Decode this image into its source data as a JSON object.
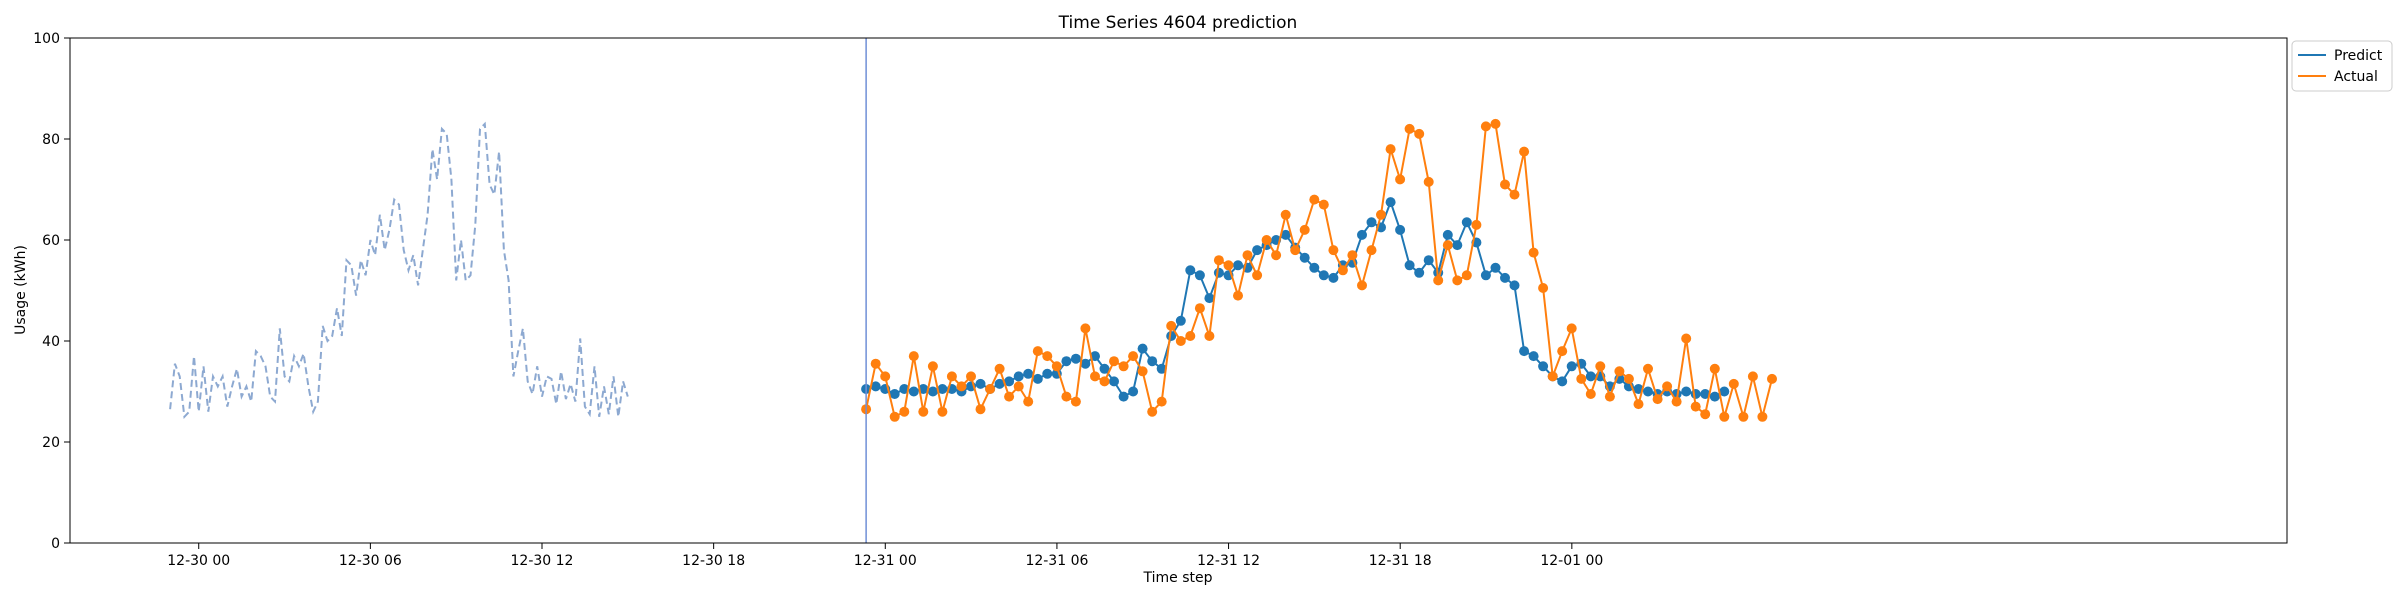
{
  "chart_data": {
    "type": "line",
    "title": "Time Series 4604 prediction",
    "xlabel": "Time step",
    "ylabel": "Usage (kWh)",
    "ylim": [
      0,
      100
    ],
    "yticks": [
      0,
      20,
      40,
      60,
      80,
      100
    ],
    "x_unit": "hours since 12-30 00 (hourly steps)",
    "xlim": [
      -4.5,
      73
    ],
    "xticks": [
      {
        "x": 0,
        "label": "12-30 00"
      },
      {
        "x": 6,
        "label": "12-30 06"
      },
      {
        "x": 12,
        "label": "12-30 12"
      },
      {
        "x": 18,
        "label": "12-30 18"
      },
      {
        "x": 24,
        "label": "12-31 00"
      },
      {
        "x": 30,
        "label": "12-31 06"
      },
      {
        "x": 36,
        "label": "12-31 12"
      },
      {
        "x": 42,
        "label": "12-31 18"
      },
      {
        "x": 48,
        "label": "12-01 00"
      }
    ],
    "split_x": 23.33,
    "grid": false,
    "legend_position": "outside-top-right",
    "colors": {
      "history": "#8da9d1",
      "predict": "#1f77b4",
      "actual": "#ff7f0e",
      "split_line": "#6f8fd6"
    },
    "series": [
      {
        "name": "",
        "role": "history",
        "style": "dashed",
        "x_start": -1.0,
        "x_step": 0.16667,
        "values": [
          26.5,
          35.5,
          33,
          25,
          26,
          37,
          26,
          35,
          26,
          33,
          31,
          33,
          27,
          31,
          34.5,
          29,
          31,
          28,
          38,
          37,
          35,
          29,
          28,
          42.5,
          33,
          32,
          37,
          35,
          37.5,
          31,
          26,
          28,
          43,
          40,
          41,
          46.5,
          41,
          56,
          55,
          49,
          56,
          53,
          60,
          57,
          65,
          58,
          62,
          68,
          67,
          58,
          54,
          57,
          51,
          58,
          65,
          78,
          72,
          82,
          81,
          72,
          52,
          60,
          52,
          53,
          63,
          82,
          83,
          71,
          69,
          77.5,
          58,
          52,
          33,
          38,
          42.5,
          32,
          29.5,
          35,
          29,
          33,
          32.5,
          27.5,
          34,
          28.5,
          31.5,
          28,
          40.5,
          27,
          25.5,
          35,
          25,
          31,
          25.5,
          33,
          25,
          32,
          29
        ]
      },
      {
        "name": "Predict",
        "role": "predict",
        "style": "solid",
        "x_start": 23.33,
        "x_step": 0.33333,
        "values": [
          30.5,
          31,
          30.5,
          29.5,
          30.5,
          30,
          30.5,
          30,
          30.5,
          30.5,
          30,
          31,
          31.5,
          30.5,
          31.5,
          32,
          33,
          33.5,
          32.5,
          33.5,
          33.5,
          36,
          36.5,
          35.5,
          37,
          34.5,
          32,
          29,
          30,
          38.5,
          36,
          34.5,
          41,
          44,
          54,
          53,
          48.5,
          53.5,
          53,
          55,
          54.5,
          58,
          59,
          60,
          61,
          58.5,
          56.5,
          54.5,
          53,
          52.5,
          55,
          55.5,
          61,
          63.5,
          62.5,
          67.5,
          62,
          55,
          53.5,
          56,
          53.5,
          61,
          59,
          63.5,
          59.5,
          53,
          54.5,
          52.5,
          51,
          38,
          37,
          35,
          33,
          32,
          35,
          35.5,
          33,
          33,
          31,
          32.5,
          31,
          30.5,
          30,
          29.5,
          30,
          29.5,
          30,
          29.5,
          29.5,
          29,
          30
        ]
      },
      {
        "name": "Actual",
        "role": "actual",
        "style": "solid",
        "x_start": 23.33,
        "x_step": 0.33333,
        "values": [
          26.5,
          35.5,
          33,
          25,
          26,
          37,
          26,
          35,
          26,
          33,
          31,
          33,
          26.5,
          30.5,
          34.5,
          29,
          31,
          28,
          38,
          37,
          35,
          29,
          28,
          42.5,
          33,
          32,
          36,
          35,
          37,
          34,
          26,
          28,
          43,
          40,
          41,
          46.5,
          41,
          56,
          55,
          49,
          57,
          53,
          60,
          57,
          65,
          58,
          62,
          68,
          67,
          58,
          54,
          57,
          51,
          58,
          65,
          78,
          72,
          82,
          81,
          71.5,
          52,
          59,
          52,
          53,
          63,
          82.5,
          83,
          71,
          69,
          77.5,
          57.5,
          50.5,
          33,
          38,
          42.5,
          32.5,
          29.5,
          35,
          29,
          34,
          32.5,
          27.5,
          34.5,
          28.5,
          31,
          28,
          40.5,
          27,
          25.5,
          34.5,
          25,
          31.5,
          25,
          33,
          25,
          32.5
        ]
      }
    ]
  }
}
